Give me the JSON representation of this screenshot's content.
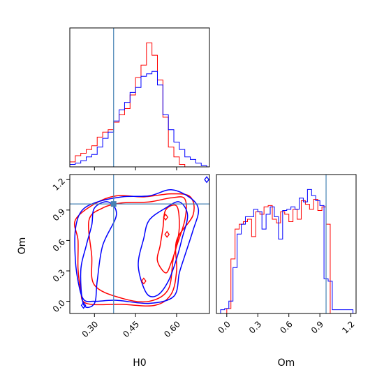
{
  "chart_data": {
    "type": "corner",
    "parameters": [
      "H0",
      "Om"
    ],
    "truth": {
      "H0": 0.37,
      "Om": 0.96
    },
    "colors": {
      "red": "#ff0000",
      "blue": "#0000ff",
      "truth": "#4682b4"
    },
    "panels": {
      "h0_hist": {
        "type": "histogram",
        "xlim": [
          0.21,
          0.72
        ],
        "ylim": [
          0,
          1.12
        ],
        "series": [
          {
            "color": "red",
            "edges": [
              0.21,
              0.23,
              0.25,
              0.27,
              0.29,
              0.31,
              0.33,
              0.35,
              0.37,
              0.39,
              0.41,
              0.43,
              0.45,
              0.47,
              0.49,
              0.51,
              0.53,
              0.55,
              0.57,
              0.59,
              0.61,
              0.63,
              0.65
            ],
            "counts": [
              0.04,
              0.09,
              0.11,
              0.14,
              0.17,
              0.24,
              0.28,
              0.3,
              0.36,
              0.42,
              0.47,
              0.58,
              0.72,
              0.82,
              1.0,
              0.9,
              0.7,
              0.4,
              0.16,
              0.08,
              0.02,
              0.0
            ]
          },
          {
            "color": "blue",
            "edges": [
              0.21,
              0.23,
              0.25,
              0.27,
              0.29,
              0.31,
              0.33,
              0.35,
              0.37,
              0.39,
              0.41,
              0.43,
              0.45,
              0.47,
              0.49,
              0.51,
              0.53,
              0.55,
              0.57,
              0.59,
              0.61,
              0.63,
              0.65,
              0.67,
              0.69,
              0.71
            ],
            "counts": [
              0.02,
              0.03,
              0.05,
              0.08,
              0.1,
              0.16,
              0.23,
              0.28,
              0.37,
              0.46,
              0.52,
              0.6,
              0.64,
              0.73,
              0.75,
              0.77,
              0.66,
              0.42,
              0.3,
              0.2,
              0.14,
              0.08,
              0.06,
              0.03,
              0.01
            ]
          }
        ]
      },
      "om_hist": {
        "type": "histogram",
        "xlim": [
          -0.1,
          1.25
        ],
        "ylim": [
          0,
          1.12
        ],
        "series": [
          {
            "color": "red",
            "edges": [
              0.0,
              0.04,
              0.08,
              0.12,
              0.16,
              0.2,
              0.24,
              0.28,
              0.32,
              0.36,
              0.4,
              0.44,
              0.48,
              0.52,
              0.56,
              0.6,
              0.64,
              0.68,
              0.72,
              0.76,
              0.8,
              0.84,
              0.88,
              0.92,
              0.96,
              1.0
            ],
            "counts": [
              0.04,
              0.44,
              0.68,
              0.72,
              0.74,
              0.76,
              0.62,
              0.82,
              0.8,
              0.86,
              0.87,
              0.76,
              0.73,
              0.82,
              0.8,
              0.74,
              0.84,
              0.76,
              0.91,
              0.88,
              0.84,
              0.92,
              0.83,
              0.86,
              0.72,
              0.0
            ]
          },
          {
            "color": "blue",
            "edges": [
              -0.06,
              -0.02,
              0.02,
              0.06,
              0.1,
              0.14,
              0.18,
              0.22,
              0.26,
              0.3,
              0.34,
              0.38,
              0.42,
              0.46,
              0.5,
              0.54,
              0.58,
              0.62,
              0.66,
              0.7,
              0.74,
              0.78,
              0.82,
              0.86,
              0.9,
              0.94,
              0.98,
              1.02,
              1.06,
              1.1,
              1.14,
              1.18,
              1.22
            ],
            "counts": [
              0.03,
              0.04,
              0.1,
              0.37,
              0.64,
              0.72,
              0.78,
              0.78,
              0.84,
              0.82,
              0.68,
              0.8,
              0.86,
              0.78,
              0.6,
              0.83,
              0.84,
              0.86,
              0.84,
              0.93,
              0.9,
              1.0,
              0.95,
              0.91,
              0.87,
              0.28,
              0.26,
              0.03,
              0.03,
              0.03,
              0.03,
              0.03
            ]
          }
        ]
      },
      "joint": {
        "type": "contour",
        "xlim": [
          0.21,
          0.72
        ],
        "ylim": [
          -0.12,
          1.25
        ],
        "contours": [
          {
            "color": "red",
            "points": [
              [
                0.27,
                -0.02
              ],
              [
                0.25,
                0.12
              ],
              [
                0.24,
                0.32
              ],
              [
                0.24,
                0.6
              ],
              [
                0.23,
                0.8
              ],
              [
                0.3,
                0.96
              ],
              [
                0.38,
                1.04
              ],
              [
                0.48,
                1.03
              ],
              [
                0.58,
                1.06
              ],
              [
                0.65,
                1.03
              ],
              [
                0.66,
                0.85
              ],
              [
                0.6,
                0.6
              ],
              [
                0.6,
                0.3
              ],
              [
                0.58,
                0.07
              ],
              [
                0.52,
                -0.04
              ],
              [
                0.4,
                -0.03
              ]
            ]
          },
          {
            "color": "red",
            "points": [
              [
                0.3,
                0.16
              ],
              [
                0.29,
                0.45
              ],
              [
                0.28,
                0.8
              ],
              [
                0.33,
                0.92
              ],
              [
                0.4,
                0.97
              ],
              [
                0.5,
                0.98
              ],
              [
                0.58,
                1.02
              ],
              [
                0.63,
                1.01
              ],
              [
                0.63,
                0.8
              ],
              [
                0.59,
                0.45
              ],
              [
                0.57,
                0.12
              ],
              [
                0.5,
                0.0
              ],
              [
                0.4,
                0.03
              ]
            ]
          },
          {
            "color": "red",
            "points": [
              [
                0.53,
                0.4
              ],
              [
                0.54,
                0.55
              ],
              [
                0.55,
                0.72
              ],
              [
                0.56,
                0.9
              ],
              [
                0.6,
                0.94
              ],
              [
                0.61,
                0.75
              ],
              [
                0.6,
                0.55
              ],
              [
                0.58,
                0.38
              ],
              [
                0.56,
                0.28
              ]
            ]
          },
          {
            "color": "blue",
            "points": [
              [
                0.26,
                0.02
              ],
              [
                0.24,
                0.2
              ],
              [
                0.23,
                0.42
              ],
              [
                0.23,
                0.7
              ],
              [
                0.25,
                0.88
              ],
              [
                0.3,
                0.97
              ],
              [
                0.4,
                1.03
              ],
              [
                0.5,
                1.04
              ],
              [
                0.58,
                1.1
              ],
              [
                0.65,
                1.02
              ],
              [
                0.68,
                0.9
              ],
              [
                0.66,
                0.7
              ],
              [
                0.63,
                0.45
              ],
              [
                0.61,
                0.28
              ],
              [
                0.59,
                0.05
              ],
              [
                0.5,
                -0.02
              ],
              [
                0.38,
                0.01
              ],
              [
                0.3,
                0.0
              ]
            ]
          },
          {
            "color": "blue",
            "points": [
              [
                0.49,
                0.08
              ],
              [
                0.46,
                0.35
              ],
              [
                0.48,
                0.62
              ],
              [
                0.5,
                0.8
              ],
              [
                0.56,
                0.92
              ],
              [
                0.61,
                0.98
              ],
              [
                0.64,
                0.85
              ],
              [
                0.62,
                0.62
              ],
              [
                0.6,
                0.42
              ],
              [
                0.57,
                0.2
              ],
              [
                0.53,
                0.06
              ]
            ]
          },
          {
            "color": "blue",
            "points": [
              [
                0.26,
                -0.03
              ],
              [
                0.25,
                0.3
              ],
              [
                0.27,
                0.55
              ],
              [
                0.29,
                0.75
              ],
              [
                0.3,
                0.92
              ],
              [
                0.35,
                0.98
              ],
              [
                0.38,
                0.85
              ],
              [
                0.33,
                0.55
              ],
              [
                0.31,
                0.2
              ],
              [
                0.3,
                -0.02
              ]
            ]
          }
        ],
        "markers": [
          {
            "color": "blue",
            "x": 0.26,
            "y": -0.04
          },
          {
            "color": "blue",
            "x": 0.71,
            "y": 1.2
          },
          {
            "color": "red",
            "x": 0.48,
            "y": 0.2
          },
          {
            "color": "red",
            "x": 0.56,
            "y": 0.83
          },
          {
            "color": "red",
            "x": 0.565,
            "y": 0.66
          }
        ]
      }
    },
    "h0_ticks": [
      "0.30",
      "0.45",
      "0.60"
    ],
    "h0_tick_values": [
      0.3,
      0.45,
      0.6
    ],
    "om_ticks": [
      "0.0",
      "0.3",
      "0.6",
      "0.9",
      "1.2"
    ],
    "om_tick_values": [
      0.0,
      0.3,
      0.6,
      0.9,
      1.2
    ],
    "xlabel_h0": "H0",
    "xlabel_om": "Om",
    "ylabel_joint": "Om"
  }
}
